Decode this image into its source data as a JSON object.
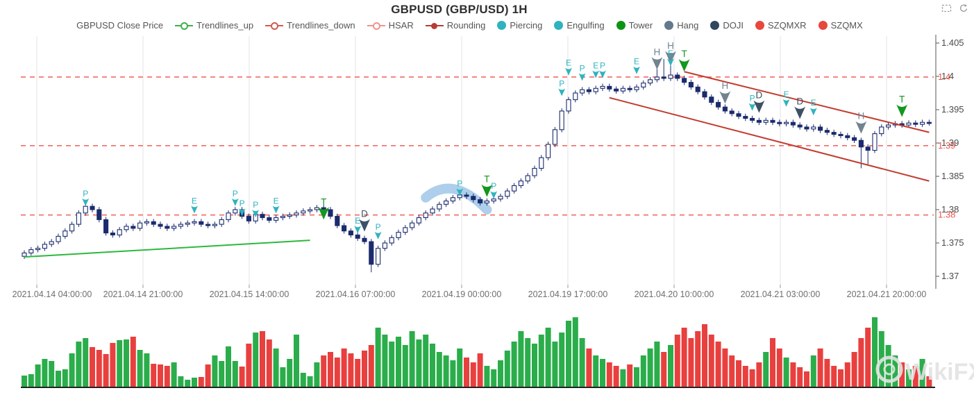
{
  "header": {
    "title": "GBPUSD (GBP/USD) 1H"
  },
  "toolbox": {
    "icons": [
      {
        "name": "area-zoom-icon"
      },
      {
        "name": "restore-icon"
      }
    ]
  },
  "watermark": {
    "text": "WikiFX"
  },
  "legend": {
    "items": [
      {
        "label": "GBPUSD Close Price",
        "symbol": "none",
        "color": "#444444"
      },
      {
        "label": "Trendlines_up",
        "symbol": "line-circle",
        "color": "#3fae4c"
      },
      {
        "label": "Trendlines_down",
        "symbol": "line-circle",
        "color": "#d05a52"
      },
      {
        "label": "HSAR",
        "symbol": "line-circle",
        "color": "#f2928c"
      },
      {
        "label": "Rounding",
        "symbol": "line-dot",
        "color": "#b93a32"
      },
      {
        "label": "Piercing",
        "symbol": "dot",
        "color": "#2fb3be"
      },
      {
        "label": "Engulfing",
        "symbol": "dot",
        "color": "#2fb3be"
      },
      {
        "label": "Tower",
        "symbol": "dot",
        "color": "#0d9413"
      },
      {
        "label": "Hang",
        "symbol": "dot",
        "color": "#64798a"
      },
      {
        "label": "DOJI",
        "symbol": "dot",
        "color": "#31475e"
      },
      {
        "label": "SZQMXR",
        "symbol": "dot",
        "color": "#e8473c"
      },
      {
        "label": "SZQMX",
        "symbol": "dot",
        "color": "#e8473c"
      }
    ]
  },
  "chart_data": {
    "type": "candlestick",
    "title": "GBPUSD (GBP/USD) 1H",
    "x_axis": {
      "tick_labels": [
        "2021.04.14 04:00:00",
        "2021.04.14 21:00:00",
        "2021.04.15 14:00:00",
        "2021.04.16 07:00:00",
        "2021.04.19 00:00:00",
        "2021.04.19 17:00:00",
        "2021.04.20 10:00:00",
        "2021.04.21 03:00:00",
        "2021.04.21 20:00:00"
      ]
    },
    "y_axis": {
      "tick_labels": [
        "1.405",
        "1.4",
        "1.395",
        "1.39",
        "1.385",
        "1.38",
        "1.375",
        "1.37"
      ],
      "range": [
        1.37,
        1.405
      ]
    },
    "series": {
      "name": "GBPUSD Close Price",
      "open_first": 1.373,
      "default_wick": 0.0004,
      "closes": [
        1.3735,
        1.374,
        1.3742,
        1.3748,
        1.3752,
        1.376,
        1.3768,
        1.3778,
        1.3795,
        1.3805,
        1.38,
        1.3785,
        1.3765,
        1.3762,
        1.377,
        1.3775,
        1.3772,
        1.378,
        1.3782,
        1.3778,
        1.3775,
        1.3772,
        1.3775,
        1.3778,
        1.378,
        1.3782,
        1.3778,
        1.3776,
        1.3778,
        1.3785,
        1.3795,
        1.38,
        1.379,
        1.3783,
        1.3793,
        1.3788,
        1.3784,
        1.3788,
        1.379,
        1.3792,
        1.3795,
        1.3798,
        1.38,
        1.3803,
        1.38,
        1.379,
        1.3776,
        1.3768,
        1.3762,
        1.3757,
        1.3752,
        1.3718,
        1.3742,
        1.375,
        1.3758,
        1.3766,
        1.3773,
        1.378,
        1.3788,
        1.3795,
        1.3801,
        1.3808,
        1.3813,
        1.3818,
        1.3822,
        1.382,
        1.3815,
        1.381,
        1.3813,
        1.3816,
        1.382,
        1.3828,
        1.3836,
        1.3843,
        1.3851,
        1.3862,
        1.3878,
        1.3898,
        1.392,
        1.3948,
        1.3965,
        1.3975,
        1.398,
        1.3977,
        1.3982,
        1.3985,
        1.3981,
        1.3978,
        1.3982,
        1.398,
        1.3984,
        1.399,
        1.3995,
        1.3999,
        1.3997,
        1.4002,
        1.3997,
        1.3991,
        1.3984,
        1.3977,
        1.3969,
        1.3961,
        1.3954,
        1.3948,
        1.3944,
        1.394,
        1.3937,
        1.3934,
        1.3931,
        1.3934,
        1.3931,
        1.3929,
        1.3931,
        1.3927,
        1.3924,
        1.3921,
        1.3924,
        1.3919,
        1.3916,
        1.3913,
        1.3911,
        1.3908,
        1.3904,
        1.3894,
        1.3889,
        1.3914,
        1.3924,
        1.3927,
        1.3929,
        1.3927,
        1.393,
        1.3928,
        1.3931,
        1.393
      ],
      "wick_overrides": {
        "51": {
          "low": 1.3706
        },
        "93": {
          "high": 1.4024
        },
        "94": {
          "high": 1.4026
        },
        "95": {
          "high": 1.4028
        },
        "123": {
          "low": 1.3862
        },
        "124": {
          "low": 1.3868
        }
      },
      "volumes": [
        16,
        18,
        32,
        40,
        37,
        23,
        25,
        48,
        65,
        70,
        57,
        53,
        47,
        63,
        67,
        68,
        72,
        53,
        48,
        33,
        32,
        30,
        35,
        15,
        10,
        13,
        14,
        32,
        45,
        37,
        58,
        37,
        29,
        62,
        78,
        80,
        68,
        55,
        28,
        40,
        75,
        20,
        15,
        35,
        45,
        50,
        42,
        55,
        48,
        40,
        52,
        60,
        85,
        75,
        65,
        72,
        60,
        80,
        68,
        75,
        62,
        50,
        45,
        38,
        55,
        42,
        35,
        48,
        30,
        25,
        38,
        52,
        65,
        80,
        70,
        62,
        75,
        85,
        65,
        78,
        95,
        100,
        70,
        55,
        45,
        40,
        35,
        30,
        25,
        32,
        28,
        45,
        55,
        65,
        50,
        60,
        75,
        85,
        70,
        80,
        90,
        75,
        65,
        55,
        45,
        38,
        30,
        25,
        35,
        50,
        70,
        55,
        42,
        35,
        28,
        22,
        45,
        55,
        40,
        30,
        25,
        35,
        50,
        70,
        85,
        100,
        80,
        60,
        45,
        35,
        25,
        30,
        40,
        15
      ]
    },
    "hsar_levels": [
      {
        "price": 1.3999,
        "label": "1.4"
      },
      {
        "price": 1.3896,
        "label": "1.39"
      },
      {
        "price": 1.3792,
        "label": "1.38"
      }
    ],
    "trendlines": [
      {
        "name": "Trendlines_up",
        "from_index": 0,
        "from_price": 1.3729,
        "to_index": 42,
        "to_price": 1.3754,
        "color": "#2db83d"
      },
      {
        "name": "Trendlines_down",
        "from_index": 97,
        "from_price": 1.4007,
        "to_index": 133,
        "to_price": 1.3916,
        "color": "#c23b2e"
      },
      {
        "name": "Trendlines_down",
        "from_index": 86,
        "from_price": 1.3968,
        "to_index": 133,
        "to_price": 1.3843,
        "color": "#c23b2e"
      }
    ],
    "rounding_band": {
      "from_index": 59,
      "from_price": 1.3818,
      "peak_index": 63,
      "peak_price": 1.3838,
      "to_index": 68,
      "to_price": 1.38,
      "color": "#9fc7e8"
    },
    "markers": [
      {
        "label": "P",
        "pattern": "Piercing",
        "index": 9,
        "price": 1.382,
        "size": "s"
      },
      {
        "label": "E",
        "pattern": "Engulfing",
        "index": 25,
        "price": 1.3809,
        "size": "s"
      },
      {
        "label": "P",
        "pattern": "Piercing",
        "index": 31,
        "price": 1.382,
        "size": "s"
      },
      {
        "label": "P",
        "pattern": "Piercing",
        "index": 32,
        "price": 1.3805,
        "size": "s"
      },
      {
        "label": "P",
        "pattern": "Piercing",
        "index": 34,
        "price": 1.3803,
        "size": "s"
      },
      {
        "label": "E",
        "pattern": "Engulfing",
        "index": 37,
        "price": 1.3809,
        "size": "s"
      },
      {
        "label": "T",
        "pattern": "Tower",
        "index": 44,
        "price": 1.3807,
        "size": "l"
      },
      {
        "label": "E",
        "pattern": "Engulfing",
        "index": 49,
        "price": 1.3779,
        "size": "s"
      },
      {
        "label": "D",
        "pattern": "DOJI",
        "index": 50,
        "price": 1.3789,
        "size": "l"
      },
      {
        "label": "P",
        "pattern": "Piercing",
        "index": 52,
        "price": 1.377,
        "size": "s"
      },
      {
        "label": "P",
        "pattern": "Piercing",
        "index": 64,
        "price": 1.3835,
        "size": "s"
      },
      {
        "label": "T",
        "pattern": "Tower",
        "index": 68,
        "price": 1.3841,
        "size": "l"
      },
      {
        "label": "P",
        "pattern": "Piercing",
        "index": 69,
        "price": 1.3831,
        "size": "s"
      },
      {
        "label": "P",
        "pattern": "Piercing",
        "index": 79,
        "price": 1.3985,
        "size": "s"
      },
      {
        "label": "E",
        "pattern": "Engulfing",
        "index": 80,
        "price": 1.4016,
        "size": "s"
      },
      {
        "label": "P",
        "pattern": "Piercing",
        "index": 82,
        "price": 1.4008,
        "size": "s"
      },
      {
        "label": "E",
        "pattern": "Engulfing",
        "index": 84,
        "price": 1.4012,
        "size": "s"
      },
      {
        "label": "P",
        "pattern": "Piercing",
        "index": 85,
        "price": 1.4012,
        "size": "s"
      },
      {
        "label": "E",
        "pattern": "Engulfing",
        "index": 90,
        "price": 1.4018,
        "size": "s"
      },
      {
        "label": "H",
        "pattern": "Hang",
        "index": 93,
        "price": 1.4032,
        "size": "l"
      },
      {
        "label": "H",
        "pattern": "Hang",
        "index": 95,
        "price": 1.4041,
        "size": "l"
      },
      {
        "label": "E",
        "pattern": "Engulfing",
        "index": 95,
        "price": 1.403,
        "size": "s"
      },
      {
        "label": "T",
        "pattern": "Tower",
        "index": 97,
        "price": 1.4029,
        "size": "l"
      },
      {
        "label": "H",
        "pattern": "Hang",
        "index": 103,
        "price": 1.3981,
        "size": "l"
      },
      {
        "label": "P",
        "pattern": "Piercing",
        "index": 107,
        "price": 1.3963,
        "size": "s"
      },
      {
        "label": "D",
        "pattern": "DOJI",
        "index": 108,
        "price": 1.3967,
        "size": "l"
      },
      {
        "label": "E",
        "pattern": "Engulfing",
        "index": 112,
        "price": 1.3969,
        "size": "s"
      },
      {
        "label": "D",
        "pattern": "DOJI",
        "index": 114,
        "price": 1.3958,
        "size": "l"
      },
      {
        "label": "E",
        "pattern": "Engulfing",
        "index": 116,
        "price": 1.3956,
        "size": "s"
      },
      {
        "label": "H",
        "pattern": "Hang",
        "index": 123,
        "price": 1.3936,
        "size": "l"
      },
      {
        "label": "T",
        "pattern": "Tower",
        "index": 129,
        "price": 1.3961,
        "size": "l"
      }
    ],
    "colors": {
      "candle": "#1b2b6d",
      "vol_up": "#2aad4a",
      "vol_down": "#e8403e",
      "hsar": "#f0524a",
      "grid": "#e3e3e3",
      "axis_line": "#555555",
      "x_label": "#6e6e6e",
      "y_label": "#4a4a4a",
      "Piercing": "#2fb3be",
      "Engulfing": "#2fb3be",
      "Tower": "#12971f",
      "Hang": "#72838f",
      "DOJI": "#3c5166",
      "watermark": "#e3e3e3"
    }
  }
}
